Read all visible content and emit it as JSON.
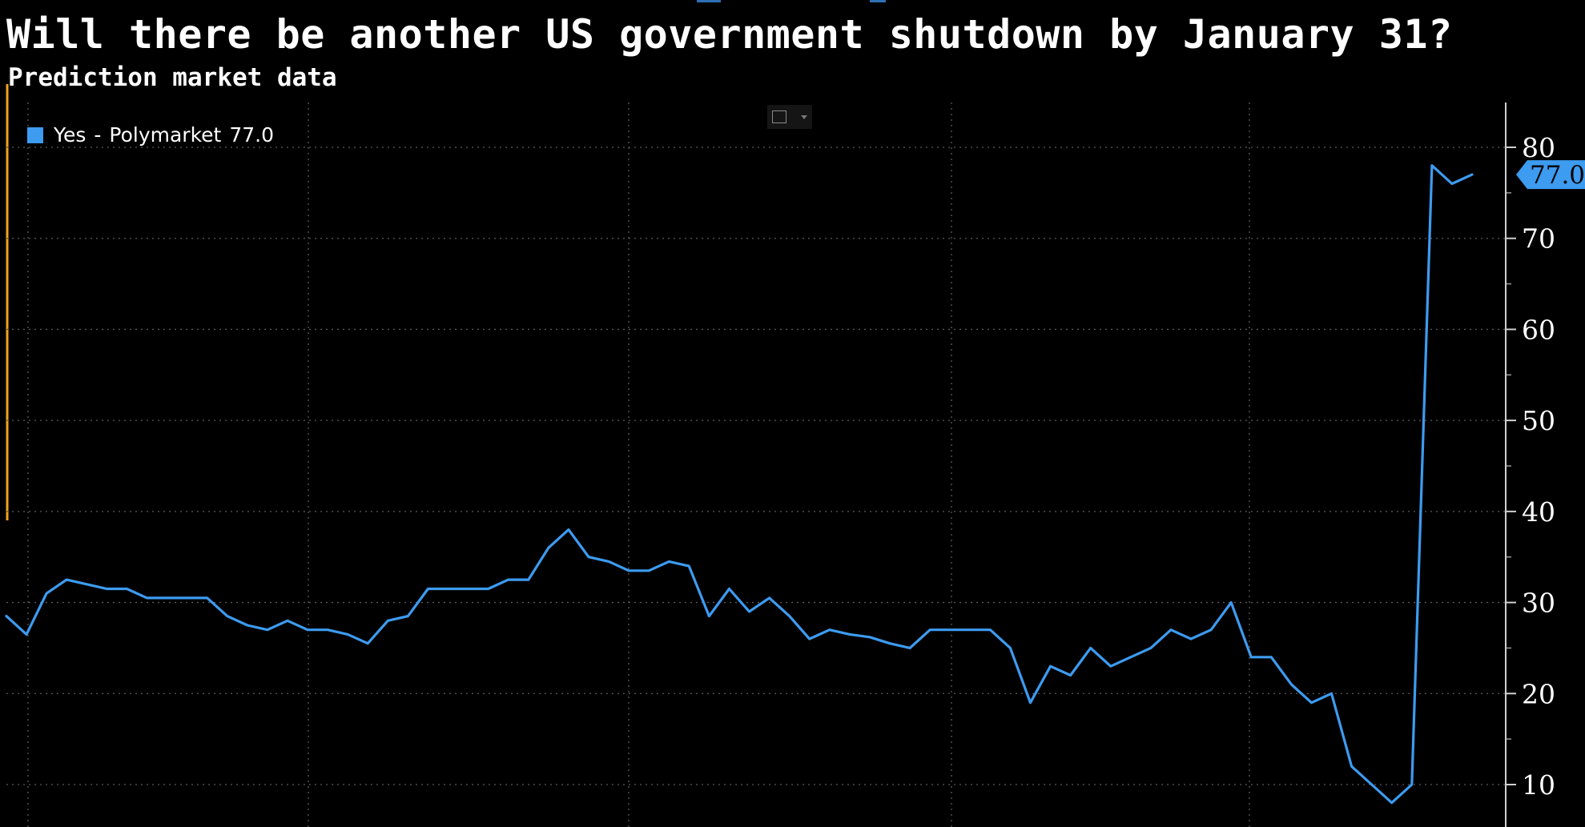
{
  "title": "Will there be another US government shutdown by January 31?",
  "subtitle": "Prediction market data",
  "legend": {
    "label": "Yes",
    "separator": "-",
    "source": "Polymarket",
    "last_value": "77.0"
  },
  "last_value_tag": "77.0",
  "colors": {
    "background": "#000000",
    "series": "#3d9bf0",
    "grid": "#5a5a5a",
    "text": "#ffffff",
    "top_tab": "#2f6fb6",
    "left_marker": "#f2a31b"
  },
  "toolbar": {
    "chart_type_icon": "line-chart-icon",
    "dropdown_icon": "chevron-down-icon"
  },
  "chart_data": {
    "type": "line",
    "title": "Will there be another US government shutdown by January 31?",
    "subtitle": "Prediction market data",
    "xlabel": "",
    "ylabel": "",
    "x_tick_labels": [],
    "ylim": [
      7,
      85
    ],
    "y_ticks": [
      10,
      20,
      30,
      40,
      50,
      60,
      70,
      80
    ],
    "y_axis_position": "right",
    "grid": true,
    "legend_position": "top-left",
    "series": [
      {
        "name": "Yes - Polymarket",
        "color": "#3d9bf0",
        "last_value": 77.0,
        "values": [
          28.5,
          26.5,
          31,
          32.5,
          32,
          31.5,
          31.5,
          30.5,
          30.5,
          30.5,
          30.5,
          28.5,
          27.5,
          27,
          28,
          27,
          27,
          26.5,
          25.5,
          28,
          28.5,
          31.5,
          31.5,
          31.5,
          31.5,
          32.5,
          32.5,
          36,
          38,
          35,
          34.5,
          33.5,
          33.5,
          34.5,
          34,
          28.5,
          31.5,
          29,
          30.5,
          28.5,
          26,
          27,
          26.5,
          26.2,
          25.5,
          25,
          27,
          27,
          27,
          27,
          25,
          19,
          23,
          22,
          25,
          23,
          24,
          25,
          27,
          26,
          27,
          30,
          24,
          24,
          21,
          19,
          20,
          12,
          10,
          8,
          10,
          78,
          76,
          77
        ]
      }
    ]
  }
}
